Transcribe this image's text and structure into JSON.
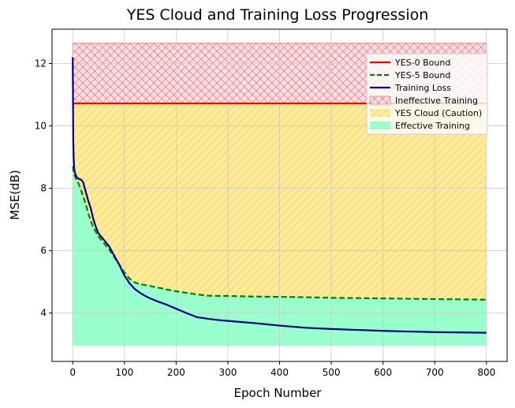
{
  "chart_data": {
    "type": "line",
    "title": "YES Cloud and Training Loss Progression",
    "xlabel": "Epoch Number",
    "ylabel": "MSE(dB)",
    "xlim": [
      -40,
      840
    ],
    "ylim": [
      2.45,
      13.1
    ],
    "xticks": [
      0,
      100,
      200,
      300,
      400,
      500,
      600,
      700,
      800
    ],
    "yticks": [
      4,
      6,
      8,
      10,
      12
    ],
    "grid": true,
    "legend_position": "top-right",
    "colors": {
      "yes0": "#ff0000",
      "yes5": "#008000",
      "training": "#00008b",
      "ineffective_fill": "#ffe0e6",
      "ineffective_edge": "#f08080",
      "yes_cloud_fill": "#ffeb99",
      "yes_cloud_hatch": "#f5d060",
      "effective_fill": "#99ffcc",
      "grid": "#c8c8c8"
    },
    "series": [
      {
        "name": "YES-0 Bound",
        "style": "solid",
        "x": [
          0,
          800
        ],
        "y": [
          10.72,
          10.72
        ]
      },
      {
        "name": "YES-5 Bound",
        "style": "dashed",
        "x": [
          0,
          2,
          5,
          10,
          15,
          20,
          25,
          30,
          35,
          40,
          45,
          50,
          60,
          70,
          80,
          90,
          100,
          110,
          120,
          130,
          140,
          150,
          160,
          170,
          180,
          190,
          200,
          220,
          240,
          260,
          280,
          300,
          350,
          400,
          450,
          500,
          550,
          600,
          650,
          700,
          750,
          800
        ],
        "y": [
          8.7,
          8.5,
          8.35,
          8.2,
          8.0,
          7.75,
          7.5,
          7.2,
          6.95,
          6.75,
          6.6,
          6.45,
          6.25,
          6.05,
          5.8,
          5.55,
          5.3,
          5.1,
          4.98,
          4.93,
          4.9,
          4.87,
          4.83,
          4.8,
          4.76,
          4.73,
          4.7,
          4.65,
          4.6,
          4.56,
          4.55,
          4.55,
          4.53,
          4.52,
          4.51,
          4.49,
          4.48,
          4.47,
          4.46,
          4.45,
          4.44,
          4.43
        ]
      },
      {
        "name": "Training Loss",
        "style": "solid",
        "x": [
          0,
          0.5,
          1,
          2,
          3,
          5,
          8,
          12,
          16,
          20,
          25,
          30,
          35,
          40,
          45,
          50,
          60,
          70,
          80,
          90,
          100,
          110,
          120,
          130,
          140,
          150,
          160,
          170,
          180,
          190,
          200,
          220,
          240,
          260,
          280,
          300,
          350,
          400,
          450,
          500,
          550,
          600,
          650,
          700,
          750,
          800
        ],
        "y": [
          12.2,
          11.0,
          9.5,
          8.9,
          8.6,
          8.45,
          8.35,
          8.3,
          8.28,
          8.2,
          7.9,
          7.6,
          7.35,
          7.0,
          6.75,
          6.55,
          6.35,
          6.15,
          5.85,
          5.55,
          5.2,
          4.95,
          4.77,
          4.65,
          4.55,
          4.47,
          4.4,
          4.34,
          4.28,
          4.21,
          4.14,
          4.0,
          3.87,
          3.82,
          3.78,
          3.75,
          3.68,
          3.6,
          3.53,
          3.49,
          3.46,
          3.43,
          3.41,
          3.39,
          3.38,
          3.37
        ]
      }
    ],
    "regions": [
      {
        "name": "Ineffective Training",
        "x": [
          0,
          800
        ],
        "y_bottom": 10.72,
        "y_top": 12.65
      },
      {
        "name": "YES Cloud (Caution)",
        "x": [
          0,
          800
        ],
        "y_bottom_series": "YES-5 Bound",
        "y_top": 10.72
      },
      {
        "name": "Effective Training",
        "x": [
          0,
          800
        ],
        "y_bottom": 2.95,
        "y_top_series": "YES-5 Bound"
      }
    ],
    "legend": [
      {
        "label": "YES-0 Bound",
        "kind": "line",
        "color_key": "yes0"
      },
      {
        "label": "YES-5 Bound",
        "kind": "dashed",
        "color_key": "yes5"
      },
      {
        "label": "Training Loss",
        "kind": "line",
        "color_key": "training"
      },
      {
        "label": "Ineffective Training",
        "kind": "patch-x",
        "color_key": "ineffective_fill"
      },
      {
        "label": "YES Cloud (Caution)",
        "kind": "patch-diag",
        "color_key": "yes_cloud_fill"
      },
      {
        "label": "Effective Training",
        "kind": "patch",
        "color_key": "effective_fill"
      }
    ]
  }
}
